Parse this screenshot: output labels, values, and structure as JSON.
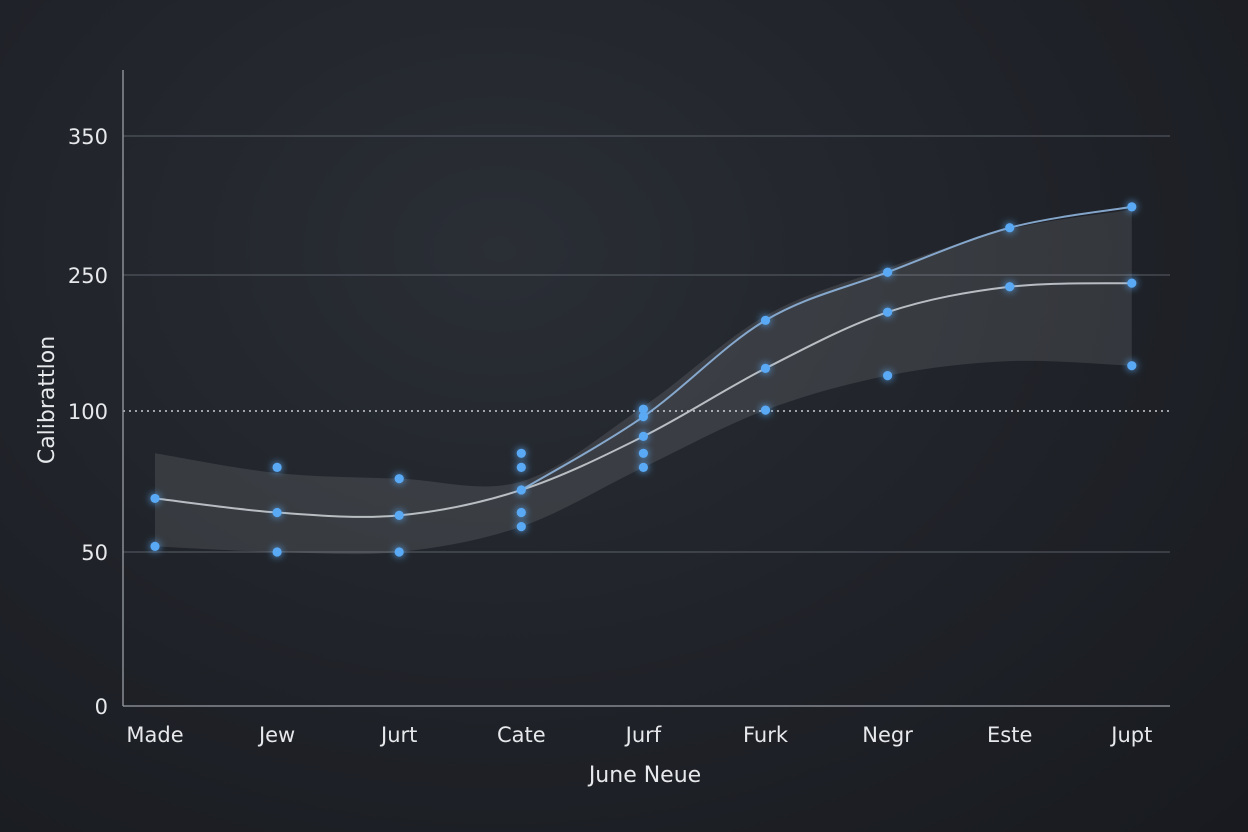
{
  "chart_data": {
    "type": "scatter",
    "title": "",
    "xlabel": "June Neue",
    "ylabel": "Calibrattlon",
    "categories": [
      "Made",
      "Jew",
      "Jurt",
      "Cate",
      "Jurf",
      "Furk",
      "Negr",
      "Este",
      "Jupt"
    ],
    "y_ticks": [
      0,
      50,
      100,
      250,
      350
    ],
    "ylim": [
      0,
      380
    ],
    "reference_line": 100,
    "grid": "horizontal",
    "points": [
      {
        "x": "Made",
        "y": 69
      },
      {
        "x": "Made",
        "y": 52
      },
      {
        "x": "Jew",
        "y": 80
      },
      {
        "x": "Jew",
        "y": 64
      },
      {
        "x": "Jew",
        "y": 50
      },
      {
        "x": "Jurt",
        "y": 76
      },
      {
        "x": "Jurt",
        "y": 63
      },
      {
        "x": "Jurt",
        "y": 50
      },
      {
        "x": "Cate",
        "y": 85
      },
      {
        "x": "Cate",
        "y": 80
      },
      {
        "x": "Cate",
        "y": 72
      },
      {
        "x": "Cate",
        "y": 64
      },
      {
        "x": "Cate",
        "y": 59
      },
      {
        "x": "Jurf",
        "y": 102
      },
      {
        "x": "Jurf",
        "y": 98
      },
      {
        "x": "Jurf",
        "y": 91
      },
      {
        "x": "Jurf",
        "y": 85
      },
      {
        "x": "Jurf",
        "y": 80
      },
      {
        "x": "Furk",
        "y": 200
      },
      {
        "x": "Furk",
        "y": 147
      },
      {
        "x": "Furk",
        "y": 101
      },
      {
        "x": "Negr",
        "y": 252
      },
      {
        "x": "Negr",
        "y": 209
      },
      {
        "x": "Negr",
        "y": 139
      },
      {
        "x": "Este",
        "y": 284
      },
      {
        "x": "Este",
        "y": 237
      },
      {
        "x": "Jupt",
        "y": 299
      },
      {
        "x": "Jupt",
        "y": 241
      },
      {
        "x": "Jupt",
        "y": 150
      }
    ],
    "trend_lines": [
      {
        "values": [
          69,
          64,
          63,
          72,
          91,
          147,
          209,
          237,
          241
        ]
      },
      {
        "values": [
          null,
          null,
          null,
          72,
          98,
          200,
          252,
          284,
          299
        ]
      }
    ],
    "confidence_band": {
      "upper": [
        85,
        78,
        76,
        75,
        105,
        205,
        255,
        283,
        297
      ],
      "lower": [
        52,
        50,
        50,
        59,
        80,
        101,
        139,
        155,
        150
      ]
    },
    "colors": {
      "point": "#5aa9f5",
      "line_main": "#c8ccd2",
      "line_upper": "#8fb4dc",
      "band": "#ffffff",
      "grid": "#5a5e66",
      "axis": "#9a9ea5"
    }
  }
}
